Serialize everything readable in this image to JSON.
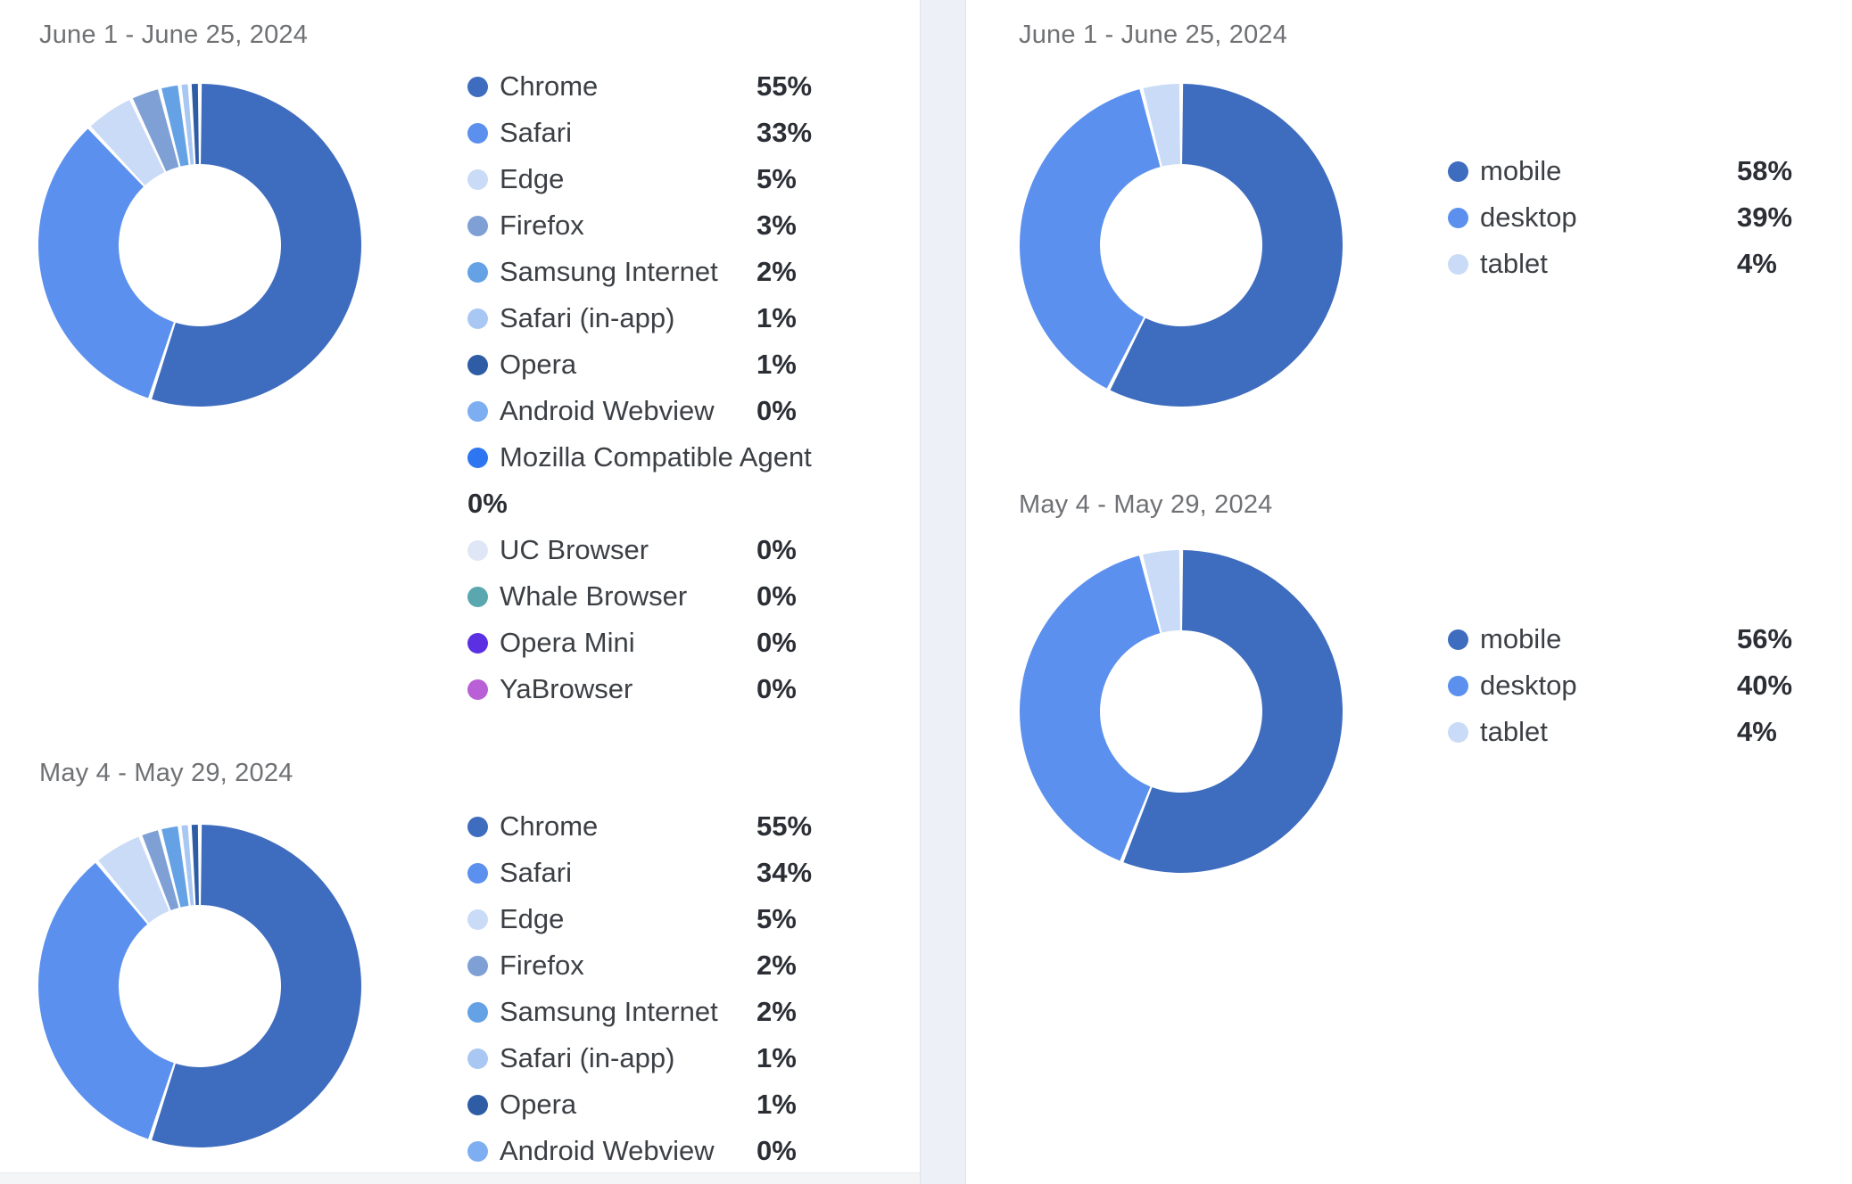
{
  "colors": {
    "chrome_mobile_dark_blue": "#3E6CBE",
    "safari_desktop_blue": "#5B90EE",
    "edge_tablet_pale_blue": "#C9DBF6",
    "firefox_gray_blue": "#7FA0D4",
    "samsung_internet_blue": "#64A2E5",
    "safari_in_app_light_blue": "#A9C7F3",
    "opera_navy": "#2E5CA5",
    "android_webview_blue": "#7DAEF2",
    "mozilla_bright_blue": "#2E75F2",
    "uc_browser_pale": "#DFE7F6",
    "whale_browser_teal": "#5AA7B0",
    "opera_mini_violet": "#5A30E2",
    "yabrowser_orchid": "#BA60D6",
    "title_gray": "#6F7174",
    "divider_band": "#EDF1F7"
  },
  "cards": [
    {
      "id": "browsers-june",
      "title": "June 1 - June 25, 2024",
      "legend": [
        {
          "label": "Chrome",
          "pct": "55%",
          "color": "#3E6CBE"
        },
        {
          "label": "Safari",
          "pct": "33%",
          "color": "#5B90EE"
        },
        {
          "label": "Edge",
          "pct": "5%",
          "color": "#C9DBF6"
        },
        {
          "label": "Firefox",
          "pct": "3%",
          "color": "#7FA0D4"
        },
        {
          "label": "Samsung Internet",
          "pct": "2%",
          "color": "#64A2E5"
        },
        {
          "label": "Safari (in-app)",
          "pct": "1%",
          "color": "#A9C7F3"
        },
        {
          "label": "Opera",
          "pct": "1%",
          "color": "#2E5CA5"
        },
        {
          "label": "Android Webview",
          "pct": "0%",
          "color": "#7DAEF2"
        },
        {
          "label": "Mozilla Compatible Agent",
          "pct": "0%",
          "color": "#2E75F2",
          "wrap": true
        },
        {
          "label": "UC Browser",
          "pct": "0%",
          "color": "#DFE7F6"
        },
        {
          "label": "Whale Browser",
          "pct": "0%",
          "color": "#5AA7B0"
        },
        {
          "label": "Opera Mini",
          "pct": "0%",
          "color": "#5A30E2"
        },
        {
          "label": "YaBrowser",
          "pct": "0%",
          "color": "#BA60D6"
        }
      ]
    },
    {
      "id": "browsers-may",
      "title": "May 4 - May 29, 2024",
      "legend": [
        {
          "label": "Chrome",
          "pct": "55%",
          "color": "#3E6CBE"
        },
        {
          "label": "Safari",
          "pct": "34%",
          "color": "#5B90EE"
        },
        {
          "label": "Edge",
          "pct": "5%",
          "color": "#C9DBF6"
        },
        {
          "label": "Firefox",
          "pct": "2%",
          "color": "#7FA0D4"
        },
        {
          "label": "Samsung Internet",
          "pct": "2%",
          "color": "#64A2E5"
        },
        {
          "label": "Safari (in-app)",
          "pct": "1%",
          "color": "#A9C7F3"
        },
        {
          "label": "Opera",
          "pct": "1%",
          "color": "#2E5CA5"
        },
        {
          "label": "Android Webview",
          "pct": "0%",
          "color": "#7DAEF2"
        }
      ]
    },
    {
      "id": "devices-june",
      "title": "June 1 - June 25, 2024",
      "legend": [
        {
          "label": "mobile",
          "pct": "58%",
          "color": "#3E6CBE"
        },
        {
          "label": "desktop",
          "pct": "39%",
          "color": "#5B90EE"
        },
        {
          "label": "tablet",
          "pct": "4%",
          "color": "#C9DBF6"
        }
      ]
    },
    {
      "id": "devices-may",
      "title": "May 4 - May 29, 2024",
      "legend": [
        {
          "label": "mobile",
          "pct": "56%",
          "color": "#3E6CBE"
        },
        {
          "label": "desktop",
          "pct": "40%",
          "color": "#5B90EE"
        },
        {
          "label": "tablet",
          "pct": "4%",
          "color": "#C9DBF6"
        }
      ]
    }
  ],
  "chart_data": [
    {
      "type": "pie",
      "variant": "donut",
      "title": "June 1 - June 25, 2024",
      "dimension": "browser",
      "unit": "%",
      "labels": [
        "Chrome",
        "Safari",
        "Edge",
        "Firefox",
        "Samsung Internet",
        "Safari (in-app)",
        "Opera",
        "Android Webview",
        "Mozilla Compatible Agent",
        "UC Browser",
        "Whale Browser",
        "Opera Mini",
        "YaBrowser"
      ],
      "values": [
        55,
        33,
        5,
        3,
        2,
        1,
        1,
        0,
        0,
        0,
        0,
        0,
        0
      ],
      "colors": [
        "#3E6CBE",
        "#5B90EE",
        "#C9DBF6",
        "#7FA0D4",
        "#64A2E5",
        "#A9C7F3",
        "#2E5CA5",
        "#7DAEF2",
        "#2E75F2",
        "#DFE7F6",
        "#5AA7B0",
        "#5A30E2",
        "#BA60D6"
      ],
      "legend_position": "right",
      "start_angle": "top",
      "direction": "clockwise"
    },
    {
      "type": "pie",
      "variant": "donut",
      "title": "May 4 - May 29, 2024",
      "dimension": "browser",
      "unit": "%",
      "labels": [
        "Chrome",
        "Safari",
        "Edge",
        "Firefox",
        "Samsung Internet",
        "Safari (in-app)",
        "Opera",
        "Android Webview"
      ],
      "values": [
        55,
        34,
        5,
        2,
        2,
        1,
        1,
        0
      ],
      "colors": [
        "#3E6CBE",
        "#5B90EE",
        "#C9DBF6",
        "#7FA0D4",
        "#64A2E5",
        "#A9C7F3",
        "#2E5CA5",
        "#7DAEF2"
      ],
      "legend_position": "right",
      "start_angle": "top",
      "direction": "clockwise"
    },
    {
      "type": "pie",
      "variant": "donut",
      "title": "June 1 - June 25, 2024",
      "dimension": "device category",
      "unit": "%",
      "labels": [
        "mobile",
        "desktop",
        "tablet"
      ],
      "values": [
        58,
        39,
        4
      ],
      "colors": [
        "#3E6CBE",
        "#5B90EE",
        "#C9DBF6"
      ],
      "legend_position": "right",
      "start_angle": "top",
      "direction": "clockwise"
    },
    {
      "type": "pie",
      "variant": "donut",
      "title": "May 4 - May 29, 2024",
      "dimension": "device category",
      "unit": "%",
      "labels": [
        "mobile",
        "desktop",
        "tablet"
      ],
      "values": [
        56,
        40,
        4
      ],
      "colors": [
        "#3E6CBE",
        "#5B90EE",
        "#C9DBF6"
      ],
      "legend_position": "right",
      "start_angle": "top",
      "direction": "clockwise"
    }
  ]
}
